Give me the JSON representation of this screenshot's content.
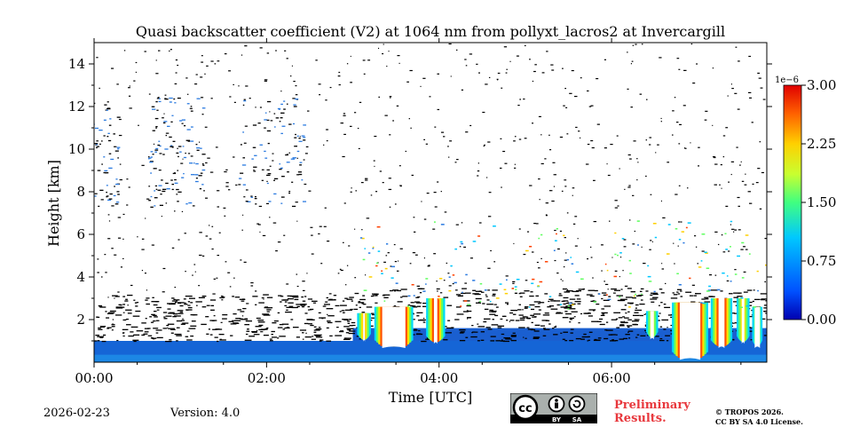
{
  "chart_data": {
    "type": "heatmap",
    "title": "Quasi backscatter coefficient (V2) at 1064 nm from pollyxt_lacros2 at Invercargill",
    "xlabel": "Time [UTC]",
    "ylabel": "Height [km]",
    "xlim": [
      0,
      7.8
    ],
    "ylim": [
      0,
      15
    ],
    "x_ticks": [
      {
        "value": 0,
        "label": "00:00"
      },
      {
        "value": 2,
        "label": "02:00"
      },
      {
        "value": 4,
        "label": "04:00"
      },
      {
        "value": 6,
        "label": "06:00"
      }
    ],
    "y_ticks": [
      {
        "value": 2,
        "label": "2"
      },
      {
        "value": 4,
        "label": "4"
      },
      {
        "value": 6,
        "label": "6"
      },
      {
        "value": 8,
        "label": "8"
      },
      {
        "value": 10,
        "label": "10"
      },
      {
        "value": 12,
        "label": "12"
      },
      {
        "value": 14,
        "label": "14"
      }
    ],
    "colorbar": {
      "exponent_label": "1e−6",
      "range": [
        0,
        3
      ],
      "ticks": [
        {
          "value": 0,
          "label": "0.00"
        },
        {
          "value": 0.75,
          "label": "0.75"
        },
        {
          "value": 1.5,
          "label": "1.50"
        },
        {
          "value": 2.25,
          "label": "2.25"
        },
        {
          "value": 3,
          "label": "3.00"
        }
      ],
      "colormap": "jet"
    },
    "features": [
      {
        "name": "boundary-layer",
        "x_range": [
          0,
          7.8
        ],
        "height_top_km": 1.0,
        "typical_value": 0.3
      },
      {
        "name": "low-clouds",
        "x_range": [
          3.0,
          7.8
        ],
        "height_base_km": 1.0,
        "height_top_km": 3.0,
        "typical_value": 3.0
      },
      {
        "name": "upper-noise",
        "x_range": [
          0,
          3.0
        ],
        "height_range_km": [
          7.5,
          12.5
        ],
        "typical_value": 0.3
      }
    ]
  },
  "footer": {
    "date": "2026-02-23",
    "version": "Version: 4.0",
    "preliminary_line1": "Preliminary",
    "preliminary_line2": "Results.",
    "copyright_line1": "© TROPOS 2026.",
    "copyright_line2": "CC BY SA 4.0 License.",
    "cc_badge": {
      "cc": "cc",
      "by": "BY",
      "sa": "SA"
    }
  },
  "colors": {
    "accent_red": "#e8383d",
    "boundary_layer": "#1565d6"
  }
}
